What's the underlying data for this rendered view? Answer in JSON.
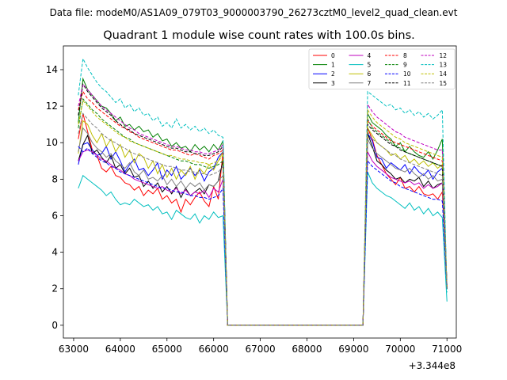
{
  "suptitle": "Data file: modeM0/AS1A09_079T03_9000003790_26273cztM0_level2_quad_clean.evt",
  "chart_data": {
    "type": "line",
    "title": "Quadrant 1 module wise count rates with 100.0s bins.",
    "xlabel": "",
    "ylabel": "",
    "x_offset_label": "+3.344e8",
    "xlim": [
      62780,
      71200
    ],
    "ylim": [
      -0.7,
      15.3
    ],
    "grid": false,
    "xticks": [
      63000,
      64000,
      65000,
      66000,
      67000,
      68000,
      69000,
      70000,
      71000
    ],
    "xtick_labels": [
      "63000",
      "64000",
      "65000",
      "66000",
      "67000",
      "68000",
      "69000",
      "70000",
      "71000"
    ],
    "yticks": [
      0,
      2,
      4,
      6,
      8,
      10,
      12,
      14
    ],
    "ytick_labels": [
      "0",
      "2",
      "4",
      "6",
      "8",
      "10",
      "12",
      "14"
    ],
    "legend": {
      "position": "top-right",
      "columns": 4
    },
    "segments": [
      {
        "name": "on1",
        "x_start": 63100,
        "x_step": 100,
        "count": 32
      },
      {
        "name": "off",
        "x": [
          66300,
          69200
        ]
      },
      {
        "name": "on2",
        "x_start": 69300,
        "x_step": 100,
        "count": 18
      }
    ],
    "series": [
      {
        "name": "0",
        "color": "#ff0000",
        "dash": "solid",
        "on1": [
          10.2,
          11.6,
          10.6,
          9.6,
          9.3,
          8.6,
          8.4,
          8.7,
          8.2,
          8.1,
          7.8,
          7.7,
          7.4,
          7.6,
          7.1,
          7.4,
          7.2,
          7.5,
          6.9,
          7.1,
          6.7,
          6.9,
          6.2,
          6.9,
          6.6,
          7.0,
          7.3,
          6.8,
          6.5,
          7.6,
          6.9,
          9.5
        ],
        "on2": [
          10.8,
          10.2,
          9.3,
          8.8,
          8.3,
          8.0,
          7.7,
          8.1,
          7.5,
          7.6,
          7.3,
          7.6,
          7.2,
          7.1,
          7.2,
          6.9,
          7.3,
          2.1
        ]
      },
      {
        "name": "1",
        "color": "#008000",
        "dash": "solid",
        "on1": [
          11.1,
          13.5,
          12.9,
          12.6,
          12.3,
          12.0,
          11.9,
          11.6,
          11.2,
          11.4,
          10.9,
          11.0,
          10.7,
          10.9,
          10.6,
          10.7,
          10.3,
          10.5,
          10.1,
          10.2,
          9.8,
          10.0,
          9.7,
          9.8,
          9.5,
          9.9,
          9.6,
          9.8,
          9.5,
          9.9,
          9.6,
          10.1
        ],
        "on2": [
          11.6,
          11.1,
          10.9,
          10.7,
          10.4,
          10.2,
          9.8,
          10.0,
          9.5,
          9.8,
          9.5,
          9.3,
          9.2,
          9.5,
          9.1,
          9.6,
          10.2,
          2.0
        ]
      },
      {
        "name": "2",
        "color": "#0000ff",
        "dash": "solid",
        "on1": [
          8.8,
          9.9,
          10.0,
          9.6,
          9.3,
          9.4,
          9.8,
          9.1,
          9.5,
          9.0,
          8.4,
          8.8,
          9.1,
          8.5,
          8.6,
          8.2,
          8.5,
          8.9,
          8.0,
          8.5,
          8.2,
          8.7,
          8.0,
          8.3,
          8.6,
          8.2,
          8.5,
          7.9,
          8.4,
          8.6,
          9.2,
          9.5
        ],
        "on2": [
          10.5,
          10.1,
          9.2,
          9.1,
          8.6,
          8.9,
          8.7,
          8.5,
          8.8,
          8.3,
          8.7,
          8.4,
          8.2,
          8.5,
          8.0,
          8.4,
          8.6,
          2.2
        ]
      },
      {
        "name": "3",
        "color": "#000000",
        "dash": "solid",
        "on1": [
          9.0,
          9.9,
          10.4,
          9.4,
          9.6,
          9.2,
          8.9,
          9.3,
          8.6,
          8.8,
          8.3,
          8.6,
          8.1,
          8.2,
          7.6,
          7.9,
          7.5,
          7.8,
          7.3,
          7.6,
          7.2,
          7.6,
          7.0,
          7.5,
          7.1,
          7.3,
          7.5,
          7.2,
          7.7,
          7.6,
          7.9,
          9.0
        ],
        "on2": [
          10.5,
          9.8,
          9.0,
          8.8,
          8.5,
          8.3,
          8.0,
          8.1,
          7.8,
          8.0,
          7.9,
          8.1,
          7.6,
          7.9,
          7.5,
          7.7,
          7.8,
          2.0
        ]
      },
      {
        "name": "4",
        "color": "#bf00bf",
        "dash": "solid",
        "on1": [
          9.0,
          9.5,
          9.6,
          9.5,
          9.3,
          9.1,
          9.0,
          8.8,
          8.6,
          8.5,
          8.3,
          8.2,
          8.0,
          7.9,
          7.8,
          7.7,
          7.6,
          7.5,
          7.6,
          7.4,
          7.3,
          7.5,
          7.2,
          7.4,
          7.1,
          7.3,
          7.2,
          7.4,
          7.0,
          7.5,
          7.3,
          8.0
        ],
        "on2": [
          9.5,
          9.0,
          8.7,
          8.5,
          8.3,
          8.1,
          8.0,
          7.9,
          7.8,
          7.9,
          7.7,
          7.8,
          7.5,
          7.7,
          7.5,
          7.6,
          7.8,
          2.0
        ]
      },
      {
        "name": "5",
        "color": "#00bfbf",
        "dash": "solid",
        "on1": [
          7.5,
          8.2,
          8.0,
          7.8,
          7.6,
          7.4,
          7.1,
          7.3,
          6.9,
          6.6,
          6.7,
          6.6,
          6.9,
          6.7,
          6.5,
          6.6,
          6.3,
          6.5,
          6.1,
          6.2,
          5.8,
          6.3,
          6.1,
          5.9,
          5.8,
          6.1,
          5.6,
          6.0,
          5.8,
          6.2,
          5.9,
          6.0
        ],
        "on2": [
          8.4,
          7.8,
          7.5,
          7.3,
          7.1,
          7.0,
          6.8,
          6.6,
          6.4,
          6.7,
          6.3,
          6.5,
          6.1,
          6.4,
          6.0,
          6.2,
          5.9,
          1.3
        ]
      },
      {
        "name": "6",
        "color": "#bfbf00",
        "dash": "solid",
        "on1": [
          9.4,
          11.2,
          11.0,
          10.4,
          10.0,
          10.5,
          9.8,
          10.2,
          9.5,
          9.9,
          9.2,
          9.6,
          8.9,
          9.4,
          9.2,
          8.6,
          9.0,
          8.3,
          8.8,
          8.1,
          8.6,
          8.0,
          8.5,
          8.2,
          8.7,
          8.0,
          8.6,
          8.3,
          8.8,
          8.5,
          9.0,
          9.5
        ],
        "on2": [
          10.8,
          10.4,
          10.0,
          9.8,
          9.6,
          9.3,
          9.4,
          9.1,
          9.3,
          8.9,
          9.1,
          8.8,
          9.0,
          8.7,
          8.9,
          8.6,
          8.8,
          2.1
        ]
      },
      {
        "name": "7",
        "color": "#808080",
        "dash": "solid",
        "on1": [
          9.5,
          10.8,
          10.5,
          10.0,
          9.7,
          9.5,
          9.2,
          9.4,
          9.0,
          8.8,
          8.6,
          8.9,
          8.4,
          8.2,
          8.5,
          8.0,
          8.1,
          7.9,
          8.2,
          7.7,
          8.0,
          7.6,
          7.9,
          7.5,
          7.8,
          7.6,
          7.8,
          7.4,
          7.7,
          7.6,
          7.9,
          8.2
        ],
        "on2": [
          10.2,
          9.7,
          9.4,
          9.2,
          9.0,
          8.8,
          8.6,
          8.5,
          8.4,
          8.6,
          8.3,
          8.1,
          8.3,
          8.0,
          8.2,
          7.9,
          8.0,
          2.0
        ]
      },
      {
        "name": "8",
        "color": "#ff0000",
        "dash": "dashed",
        "on1": [
          11.8,
          12.8,
          12.4,
          12.2,
          11.9,
          11.7,
          11.5,
          11.3,
          11.1,
          10.9,
          10.8,
          10.6,
          10.5,
          10.3,
          10.2,
          10.1,
          10.0,
          9.9,
          9.8,
          9.7,
          9.6,
          9.6,
          9.5,
          9.4,
          9.3,
          9.4,
          9.3,
          9.2,
          9.1,
          9.3,
          9.4,
          9.6
        ],
        "on2": [
          11.2,
          10.9,
          10.7,
          10.5,
          10.3,
          10.1,
          10.0,
          9.9,
          9.8,
          9.7,
          9.6,
          9.5,
          9.4,
          9.3,
          9.2,
          9.1,
          9.0,
          2.1
        ]
      },
      {
        "name": "9",
        "color": "#008000",
        "dash": "dashed",
        "on1": [
          10.8,
          12.4,
          12.1,
          11.8,
          11.6,
          11.3,
          11.1,
          10.9,
          10.7,
          10.5,
          10.3,
          10.2,
          10.0,
          9.9,
          9.8,
          9.7,
          9.6,
          9.5,
          9.4,
          9.3,
          9.2,
          9.1,
          9.0,
          9.0,
          8.9,
          8.8,
          8.8,
          8.7,
          8.6,
          8.7,
          8.8,
          9.0
        ],
        "on2": [
          11.3,
          10.8,
          10.6,
          10.4,
          10.2,
          10.0,
          9.8,
          9.7,
          9.5,
          9.4,
          9.3,
          9.2,
          9.1,
          9.0,
          8.9,
          8.8,
          8.7,
          2.0
        ]
      },
      {
        "name": "10",
        "color": "#0000ff",
        "dash": "dashed",
        "on1": [
          9.8,
          9.5,
          9.7,
          9.4,
          9.2,
          9.0,
          8.9,
          8.7,
          8.6,
          8.4,
          8.3,
          8.2,
          8.1,
          8.0,
          7.9,
          7.8,
          7.7,
          7.6,
          7.5,
          7.5,
          7.4,
          7.3,
          7.3,
          7.2,
          7.1,
          7.1,
          7.0,
          7.0,
          6.9,
          7.0,
          7.1,
          7.5
        ],
        "on2": [
          9.0,
          8.7,
          8.5,
          8.3,
          8.1,
          7.9,
          7.8,
          7.6,
          7.5,
          7.4,
          7.3,
          7.2,
          7.1,
          7.0,
          6.9,
          6.9,
          6.8,
          2.0
        ]
      },
      {
        "name": "11",
        "color": "#000000",
        "dash": "dashed",
        "on1": [
          11.5,
          13.2,
          12.8,
          12.5,
          12.2,
          11.9,
          11.7,
          11.5,
          11.2,
          11.0,
          10.8,
          10.7,
          10.5,
          10.4,
          10.3,
          10.2,
          10.1,
          10.0,
          9.9,
          9.8,
          9.7,
          9.7,
          9.6,
          9.5,
          9.5,
          9.4,
          9.4,
          9.3,
          9.3,
          9.4,
          9.5,
          9.8
        ],
        "on2": [
          11.0,
          10.7,
          10.5,
          10.3,
          10.1,
          9.9,
          9.8,
          9.6,
          9.5,
          9.4,
          9.3,
          9.2,
          9.1,
          9.0,
          8.9,
          8.8,
          8.7,
          2.0
        ]
      },
      {
        "name": "12",
        "color": "#bf00bf",
        "dash": "dashed",
        "on1": [
          12.0,
          13.2,
          12.9,
          12.6,
          12.3,
          12.0,
          11.8,
          11.6,
          11.4,
          11.2,
          11.0,
          10.8,
          10.7,
          10.5,
          10.4,
          10.3,
          10.2,
          10.1,
          10.0,
          9.9,
          9.8,
          9.8,
          9.7,
          9.6,
          9.6,
          9.5,
          9.5,
          9.4,
          9.4,
          9.5,
          9.6,
          9.9
        ],
        "on2": [
          12.1,
          11.7,
          11.4,
          11.2,
          11.0,
          10.8,
          10.6,
          10.5,
          10.3,
          10.2,
          10.1,
          10.0,
          9.9,
          9.8,
          9.7,
          9.6,
          9.6,
          2.1
        ]
      },
      {
        "name": "13",
        "color": "#00bfbf",
        "dash": "dashed",
        "on1": [
          12.6,
          14.6,
          14.1,
          13.7,
          13.3,
          13.0,
          12.8,
          12.5,
          12.2,
          12.4,
          11.9,
          12.1,
          11.7,
          11.9,
          11.5,
          11.6,
          11.2,
          11.4,
          10.9,
          11.1,
          10.8,
          11.3,
          10.8,
          11.0,
          10.7,
          10.9,
          10.6,
          10.8,
          10.5,
          10.7,
          10.4,
          10.3
        ],
        "on2": [
          12.8,
          12.6,
          12.4,
          12.2,
          12.0,
          12.1,
          11.8,
          11.9,
          11.6,
          11.8,
          11.5,
          11.7,
          11.4,
          11.6,
          11.3,
          11.5,
          11.8,
          1.8
        ]
      },
      {
        "name": "14",
        "color": "#bfbf00",
        "dash": "dashed",
        "on1": [
          11.0,
          12.3,
          12.0,
          11.7,
          11.4,
          11.2,
          11.0,
          10.8,
          10.6,
          10.4,
          10.3,
          10.1,
          10.0,
          9.9,
          9.8,
          9.7,
          9.6,
          9.5,
          9.4,
          9.3,
          9.3,
          9.2,
          9.1,
          9.1,
          9.0,
          9.0,
          8.9,
          8.9,
          8.8,
          8.9,
          9.0,
          9.3
        ],
        "on2": [
          11.8,
          11.4,
          11.1,
          10.9,
          10.7,
          10.5,
          10.3,
          10.2,
          10.0,
          9.9,
          9.8,
          9.7,
          9.6,
          9.5,
          9.4,
          9.3,
          9.2,
          2.1
        ]
      },
      {
        "name": "15",
        "color": "#808080",
        "dash": "dashed",
        "on1": [
          10.5,
          11.6,
          11.3,
          11.0,
          10.8,
          10.5,
          10.3,
          10.1,
          10.0,
          9.8,
          9.7,
          9.5,
          9.4,
          9.3,
          9.2,
          9.1,
          9.0,
          8.9,
          8.8,
          8.7,
          8.7,
          8.6,
          8.5,
          8.5,
          8.4,
          8.4,
          8.3,
          8.3,
          8.2,
          8.3,
          8.4,
          8.7
        ],
        "on2": [
          10.6,
          10.2,
          10.0,
          9.8,
          9.6,
          9.4,
          9.3,
          9.1,
          9.0,
          8.9,
          8.8,
          8.7,
          8.6,
          8.5,
          8.4,
          8.3,
          8.2,
          2.0
        ]
      }
    ]
  }
}
